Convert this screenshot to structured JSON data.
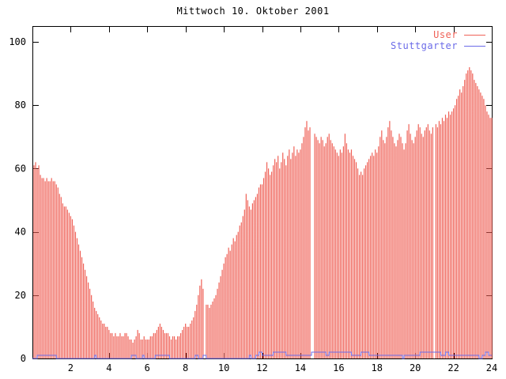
{
  "title": "Mittwoch 10. Oktober 2001",
  "chart_data": {
    "type": "bar",
    "title": "Mittwoch 10. Oktober 2001",
    "xlabel": "",
    "ylabel": "",
    "xlim": [
      0,
      24
    ],
    "ylim": [
      0,
      105
    ],
    "x_ticks": [
      2,
      4,
      6,
      8,
      10,
      12,
      14,
      16,
      18,
      20,
      22,
      24
    ],
    "x_tick_labels": [
      "2",
      "4",
      "6",
      "8",
      "10",
      "12",
      "14",
      "16",
      "18",
      "20",
      "22",
      "24"
    ],
    "y_ticks": [
      0,
      20,
      40,
      60,
      80,
      100
    ],
    "y_tick_labels": [
      "0",
      "20",
      "40",
      "60",
      "80",
      "100"
    ],
    "grid": false,
    "legend_position": "top-right",
    "sample_interval_hours": 0.0833333,
    "first_sample_hour": 0.0833333,
    "gap_note": "zero values are missing samples (white gaps) at ~9:00, ~14:35-14:40, ~21:00",
    "series": [
      {
        "name": "User",
        "style": "impulses",
        "color": "#ef6157",
        "values": [
          61,
          62,
          60,
          61,
          58,
          57,
          57,
          56,
          57,
          56,
          56,
          57,
          56,
          56,
          55,
          54,
          52,
          51,
          49,
          48,
          48,
          47,
          46,
          45,
          44,
          42,
          40,
          38,
          36,
          34,
          32,
          30,
          28,
          26,
          24,
          22,
          20,
          18,
          16,
          15,
          14,
          13,
          12,
          11,
          11,
          10,
          10,
          9,
          8,
          8,
          7,
          8,
          7,
          7,
          8,
          7,
          7,
          8,
          8,
          7,
          6,
          6,
          5,
          6,
          7,
          9,
          8,
          6,
          6,
          7,
          6,
          6,
          6,
          7,
          7,
          8,
          8,
          9,
          10,
          11,
          10,
          9,
          8,
          8,
          8,
          7,
          6,
          7,
          7,
          6,
          7,
          7,
          8,
          9,
          10,
          11,
          10,
          10,
          11,
          12,
          13,
          15,
          17,
          20,
          23,
          25,
          22,
          0,
          17,
          17,
          16,
          17,
          18,
          19,
          20,
          22,
          24,
          26,
          28,
          30,
          32,
          33,
          35,
          34,
          36,
          38,
          37,
          39,
          40,
          42,
          43,
          45,
          47,
          52,
          50,
          48,
          47,
          49,
          50,
          51,
          52,
          54,
          55,
          55,
          57,
          59,
          62,
          60,
          58,
          59,
          61,
          63,
          62,
          64,
          60,
          62,
          65,
          63,
          61,
          64,
          66,
          63,
          65,
          67,
          64,
          66,
          65,
          66,
          68,
          70,
          73,
          75,
          72,
          73,
          0,
          0,
          71,
          70,
          69,
          68,
          70,
          69,
          67,
          68,
          70,
          71,
          69,
          68,
          67,
          66,
          65,
          64,
          66,
          65,
          67,
          71,
          68,
          66,
          65,
          66,
          64,
          63,
          62,
          60,
          58,
          59,
          58,
          60,
          61,
          62,
          63,
          64,
          65,
          64,
          66,
          65,
          67,
          70,
          72,
          69,
          68,
          70,
          73,
          75,
          72,
          70,
          68,
          67,
          69,
          71,
          70,
          68,
          66,
          68,
          72,
          74,
          71,
          69,
          68,
          70,
          72,
          74,
          73,
          71,
          70,
          72,
          73,
          74,
          72,
          71,
          73,
          0,
          74,
          73,
          75,
          74,
          76,
          75,
          77,
          76,
          78,
          77,
          78,
          79,
          80,
          82,
          83,
          85,
          84,
          86,
          88,
          90,
          91,
          92,
          91,
          90,
          88,
          87,
          86,
          85,
          84,
          83,
          82,
          80,
          78,
          77,
          76,
          76
        ]
      },
      {
        "name": "Stuttgarter",
        "style": "steps",
        "color": "#6b6be8",
        "values": [
          0,
          0,
          0,
          1,
          1,
          1,
          1,
          1,
          1,
          1,
          1,
          1,
          1,
          1,
          1,
          0,
          0,
          0,
          0,
          0,
          0,
          0,
          0,
          0,
          0,
          0,
          0,
          0,
          0,
          0,
          0,
          0,
          0,
          0,
          0,
          0,
          0,
          0,
          0,
          1,
          0,
          0,
          0,
          0,
          0,
          0,
          0,
          0,
          0,
          0,
          0,
          0,
          0,
          0,
          0,
          0,
          0,
          0,
          0,
          0,
          0,
          0,
          1,
          1,
          1,
          0,
          0,
          0,
          0,
          1,
          0,
          0,
          0,
          0,
          0,
          0,
          0,
          1,
          1,
          1,
          1,
          1,
          1,
          1,
          1,
          1,
          0,
          0,
          0,
          0,
          0,
          0,
          0,
          0,
          0,
          0,
          0,
          0,
          0,
          0,
          0,
          0,
          1,
          1,
          0,
          0,
          0,
          1,
          1,
          0,
          0,
          0,
          0,
          0,
          0,
          0,
          0,
          0,
          0,
          0,
          0,
          0,
          0,
          0,
          0,
          0,
          0,
          0,
          0,
          0,
          0,
          0,
          0,
          0,
          0,
          0,
          1,
          0,
          0,
          0,
          1,
          1,
          2,
          2,
          1,
          1,
          1,
          1,
          1,
          1,
          1,
          2,
          2,
          2,
          2,
          2,
          2,
          2,
          2,
          1,
          1,
          1,
          1,
          1,
          1,
          1,
          1,
          1,
          1,
          1,
          1,
          1,
          1,
          1,
          1,
          2,
          2,
          2,
          2,
          2,
          2,
          2,
          2,
          2,
          1,
          1,
          2,
          2,
          2,
          2,
          2,
          2,
          2,
          2,
          2,
          2,
          2,
          2,
          2,
          2,
          1,
          1,
          1,
          1,
          1,
          1,
          2,
          2,
          2,
          2,
          2,
          1,
          1,
          1,
          1,
          1,
          1,
          1,
          1,
          1,
          1,
          1,
          1,
          1,
          1,
          1,
          1,
          1,
          1,
          1,
          1,
          1,
          0,
          1,
          1,
          1,
          1,
          1,
          1,
          1,
          1,
          1,
          1,
          2,
          2,
          2,
          2,
          2,
          2,
          2,
          2,
          2,
          2,
          2,
          2,
          2,
          1,
          1,
          1,
          2,
          2,
          1,
          1,
          1,
          1,
          1,
          1,
          1,
          1,
          1,
          1,
          1,
          1,
          1,
          1,
          1,
          1,
          1,
          1,
          1,
          0,
          0,
          1,
          1,
          2,
          2,
          1,
          1
        ]
      }
    ]
  },
  "colors": {
    "background": "#ffffff",
    "border": "#000000",
    "text": "#000000",
    "user_series": "#ef6157",
    "stuttgarter_series": "#6b6be8"
  }
}
